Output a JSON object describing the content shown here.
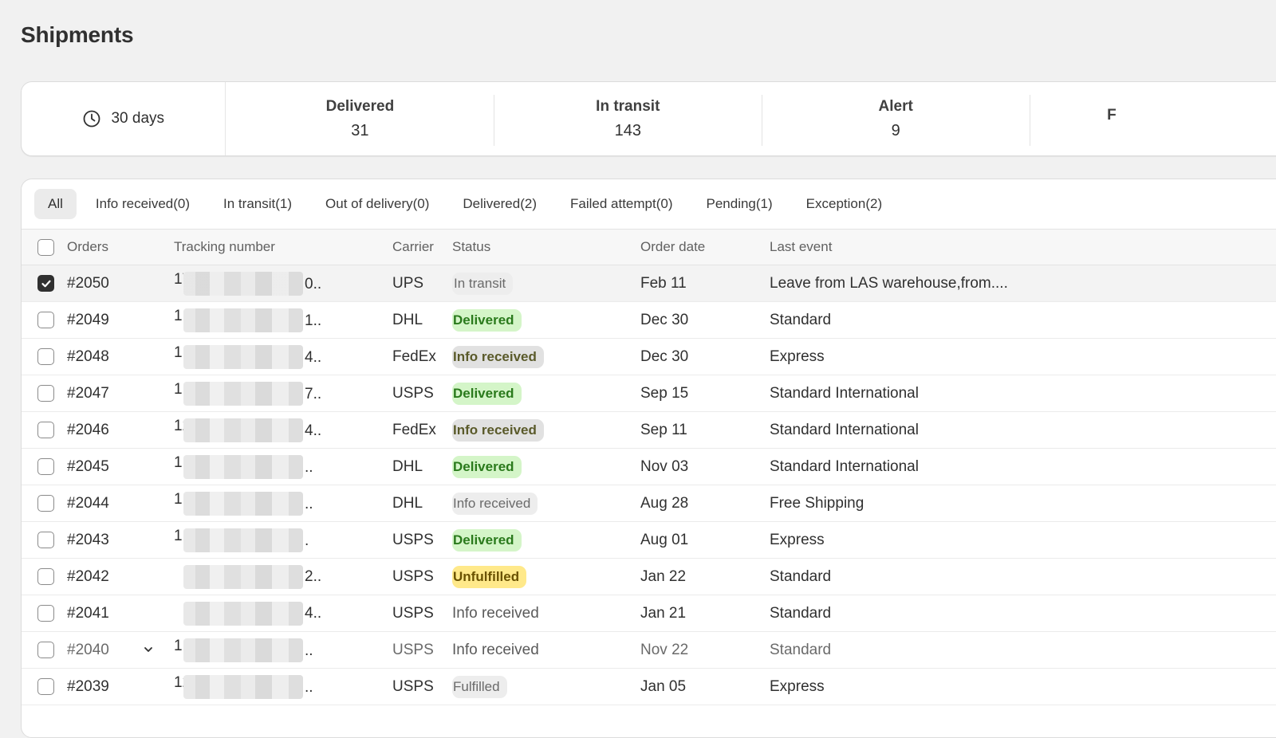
{
  "page": {
    "title": "Shipments"
  },
  "stats": {
    "range_label": "30 days",
    "range_icon": "clock-icon",
    "items": [
      {
        "label": "Delivered",
        "value": "31"
      },
      {
        "label": "In transit",
        "value": "143"
      },
      {
        "label": "Alert",
        "value": "9"
      },
      {
        "label": "F",
        "value": ""
      }
    ]
  },
  "tabs": [
    {
      "label": "All",
      "active": true
    },
    {
      "label": "Info received(0)"
    },
    {
      "label": "In transit(1)"
    },
    {
      "label": "Out of delivery(0)"
    },
    {
      "label": "Delivered(2)"
    },
    {
      "label": "Failed attempt(0)"
    },
    {
      "label": "Pending(1)"
    },
    {
      "label": "Exception(2)"
    }
  ],
  "columns": {
    "orders": "Orders",
    "tracking": "Tracking number",
    "carrier": "Carrier",
    "status": "Status",
    "order_date": "Order date",
    "last_event": "Last event"
  },
  "rows": [
    {
      "order": "#2050",
      "tracking_prefix": "17",
      "tracking_suffix": "0..",
      "carrier": "UPS",
      "status": "In transit",
      "status_style": "transit",
      "date": "Feb 11",
      "event": "Leave from LAS warehouse,from....",
      "checked": true
    },
    {
      "order": "#2049",
      "tracking_prefix": "1",
      "tracking_suffix": "1..",
      "carrier": "DHL",
      "status": "Delivered",
      "status_style": "delivered",
      "date": "Dec 30",
      "event": "Standard"
    },
    {
      "order": "#2048",
      "tracking_prefix": "1.",
      "tracking_suffix": "4..",
      "carrier": "FedEx",
      "status": "Info received",
      "status_style": "info-dark",
      "date": "Dec 30",
      "event": "Express"
    },
    {
      "order": "#2047",
      "tracking_prefix": "1.",
      "tracking_suffix": "7..",
      "carrier": "USPS",
      "status": "Delivered",
      "status_style": "delivered",
      "date": "Sep 15",
      "event": "Standard International"
    },
    {
      "order": "#2046",
      "tracking_prefix": "12",
      "tracking_suffix": "4..",
      "carrier": "FedEx",
      "status": "Info received",
      "status_style": "info-dark",
      "date": "Sep 11",
      "event": "Standard International"
    },
    {
      "order": "#2045",
      "tracking_prefix": "1.",
      "tracking_suffix": "..",
      "carrier": "DHL",
      "status": "Delivered",
      "status_style": "delivered",
      "date": "Nov 03",
      "event": "Standard International"
    },
    {
      "order": "#2044",
      "tracking_prefix": "1",
      "tracking_suffix": "..",
      "carrier": "DHL",
      "status": "Info received",
      "status_style": "info-light",
      "date": "Aug 28",
      "event": "Free Shipping"
    },
    {
      "order": "#2043",
      "tracking_prefix": "1",
      "tracking_suffix": ".",
      "carrier": "USPS",
      "status": "Delivered",
      "status_style": "delivered",
      "date": "Aug 01",
      "event": "Express"
    },
    {
      "order": "#2042",
      "tracking_prefix": "",
      "tracking_suffix": "2..",
      "carrier": "USPS",
      "status": "Unfulfilled",
      "status_style": "unfulfilled",
      "date": "Jan 22",
      "event": "Standard"
    },
    {
      "order": "#2041",
      "tracking_prefix": "",
      "tracking_suffix": "4..",
      "carrier": "USPS",
      "status": "Info received",
      "status_style": "plain",
      "date": "Jan 21",
      "event": "Standard"
    },
    {
      "order": "#2040",
      "tracking_prefix": "1",
      "tracking_suffix": "..",
      "carrier": "USPS",
      "status": "Info received",
      "status_style": "plain",
      "date": "Nov 22",
      "event": "Standard",
      "expandable": true,
      "dim": true
    },
    {
      "order": "#2039",
      "tracking_prefix": "12",
      "tracking_suffix": "..",
      "carrier": "USPS",
      "status": "Fulfilled",
      "status_style": "fulfilled",
      "date": "Jan 05",
      "event": "Express"
    }
  ]
}
